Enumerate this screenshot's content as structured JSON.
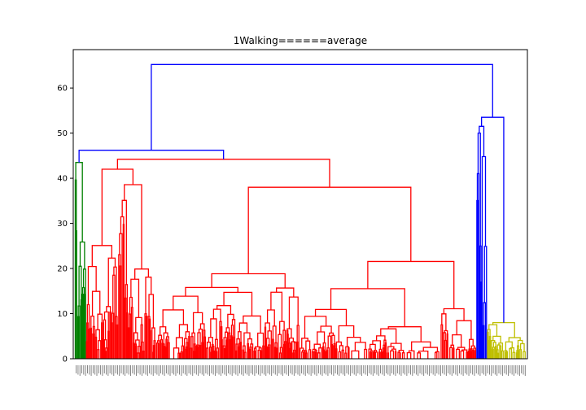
{
  "chart_data": {
    "type": "dendrogram",
    "title": "1Walking======average",
    "xlabel": "",
    "ylabel": "",
    "ylim": [
      0,
      68.5
    ],
    "yticks": [
      0,
      10,
      20,
      30,
      40,
      50,
      60
    ],
    "grid": false,
    "linkage": "average",
    "root_height": 65.2,
    "top_links": [
      {
        "height": 65.2,
        "children": [
          "green+red clusters",
          "blue+yellow clusters"
        ]
      },
      {
        "height": 53.5,
        "children": [
          "blue sub-tree",
          "yellow cluster"
        ]
      },
      {
        "height": 46.2,
        "children": [
          "green cluster",
          "red cluster"
        ]
      },
      {
        "height": 44.2,
        "children": [
          "red sub-tree A",
          "red sub-tree B"
        ]
      }
    ],
    "clusters": [
      {
        "color": "#008000",
        "max_height": 43.5,
        "leaf_share": 0.025
      },
      {
        "color": "#ff0000",
        "max_height": 44.2,
        "leaf_share": 0.865
      },
      {
        "color": "#0000ff",
        "max_height": 52.0,
        "leaf_share": 0.024
      },
      {
        "color": "#bfbf00",
        "max_height": 8.0,
        "leaf_share": 0.086
      }
    ],
    "link_color": "#0000ff"
  }
}
